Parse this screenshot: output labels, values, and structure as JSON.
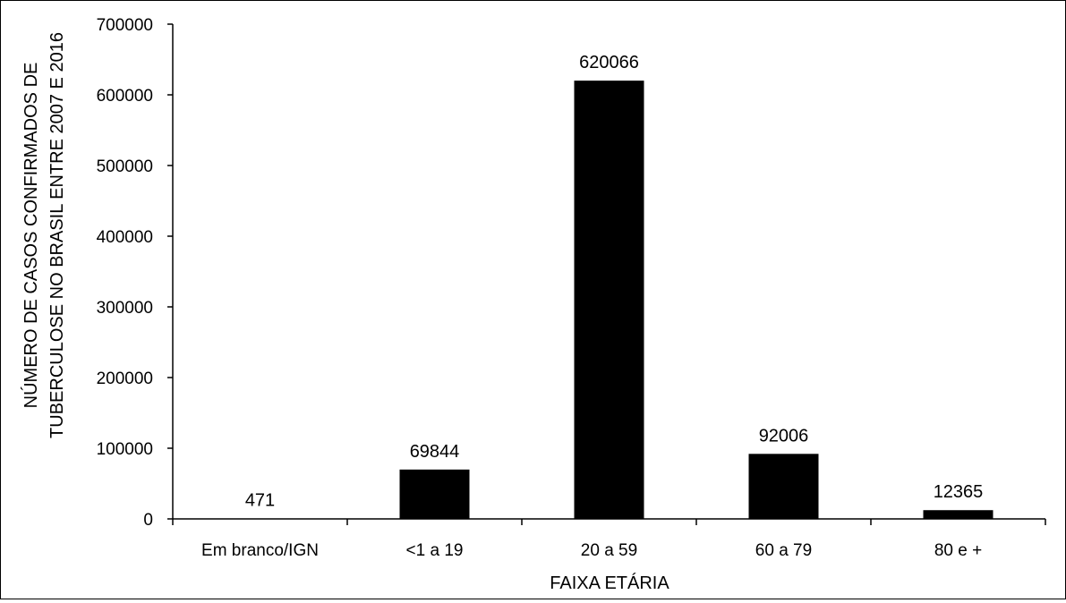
{
  "chart_data": {
    "type": "bar",
    "categories": [
      "Em branco/IGN",
      "<1 a 19",
      "20 a 59",
      "60 a 79",
      "80 e +"
    ],
    "values": [
      471,
      69844,
      620066,
      92006,
      12365
    ],
    "data_labels": [
      "471",
      "69844",
      "620066",
      "92006",
      "12365"
    ],
    "title": "",
    "xlabel": "FAIXA ETÁRIA",
    "ylabel_lines": [
      "NÚMERO DE CASOS CONFIRMADOS DE",
      "TUBERCULOSE NO BRASIL ENTRE 2007 E 2016"
    ],
    "ylim": [
      0,
      700000
    ],
    "yticks": [
      "0",
      "100000",
      "200000",
      "300000",
      "400000",
      "500000",
      "600000",
      "700000"
    ],
    "bar_color": "#000000",
    "grid": false,
    "legend": "none"
  }
}
